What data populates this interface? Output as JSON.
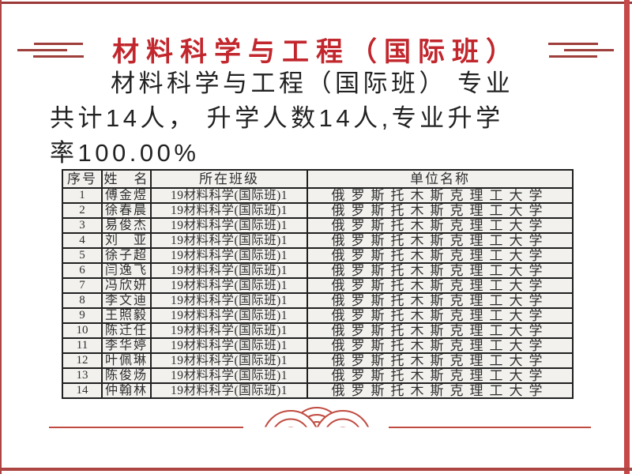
{
  "slide": {
    "title": "材料科学与工程（国际班）",
    "paragraph": {
      "full_text": "材料科学与工程（国际班） 专业共计14人， 升学人数14人,专业升学率100.00%",
      "lines": [
        "材料科学与工程（国际班） 专业",
        "共计14人， 升学人数14人,专业升学",
        "率100.00%"
      ]
    },
    "footer_ornament": "auspicious-cloud-arcs"
  },
  "table": {
    "headers": [
      "序号",
      "姓　名",
      "所在班级",
      "单位名称"
    ],
    "rows": [
      [
        "1",
        "傅金煜",
        "19材料科学(国际班)1",
        "俄罗斯托木斯克理工大学"
      ],
      [
        "2",
        "徐春晨",
        "19材料科学(国际班)1",
        "俄罗斯托木斯克理工大学"
      ],
      [
        "3",
        "易俊杰",
        "19材料科学(国际班)1",
        "俄罗斯托木斯克理工大学"
      ],
      [
        "4",
        "刘　亚",
        "19材料科学(国际班)1",
        "俄罗斯托木斯克理工大学"
      ],
      [
        "5",
        "徐子超",
        "19材料科学(国际班)1",
        "俄罗斯托木斯克理工大学"
      ],
      [
        "6",
        "闫逸飞",
        "19材料科学(国际班)1",
        "俄罗斯托木斯克理工大学"
      ],
      [
        "7",
        "冯欣妍",
        "19材料科学(国际班)1",
        "俄罗斯托木斯克理工大学"
      ],
      [
        "8",
        "李文迪",
        "19材料科学(国际班)1",
        "俄罗斯托木斯克理工大学"
      ],
      [
        "9",
        "王照毅",
        "19材料科学(国际班)1",
        "俄罗斯托木斯克理工大学"
      ],
      [
        "10",
        "陈迁任",
        "19材料科学(国际班)1",
        "俄罗斯托木斯克理工大学"
      ],
      [
        "11",
        "李华婷",
        "19材料科学(国际班)1",
        "俄罗斯托木斯克理工大学"
      ],
      [
        "12",
        "叶佩琳",
        "19材料科学(国际班)1",
        "俄罗斯托木斯克理工大学"
      ],
      [
        "13",
        "陈俊炀",
        "19材料科学(国际班)1",
        "俄罗斯托木斯克理工大学"
      ],
      [
        "14",
        "仲翰林",
        "19材料科学(国际班)1",
        "俄罗斯托木斯克理工大学"
      ]
    ]
  },
  "colors": {
    "title-red": "#c1272d",
    "decor-red": "#9e3f3c",
    "frame-top": "#9c3838",
    "frame-right": "#c64848",
    "frame-bottom": "#ad4543",
    "accent-red": "#c04b40",
    "ink": "#222222",
    "table-border": "#202020",
    "table-text": "#2f2f2f",
    "table-bg": "#f2f1ee"
  }
}
